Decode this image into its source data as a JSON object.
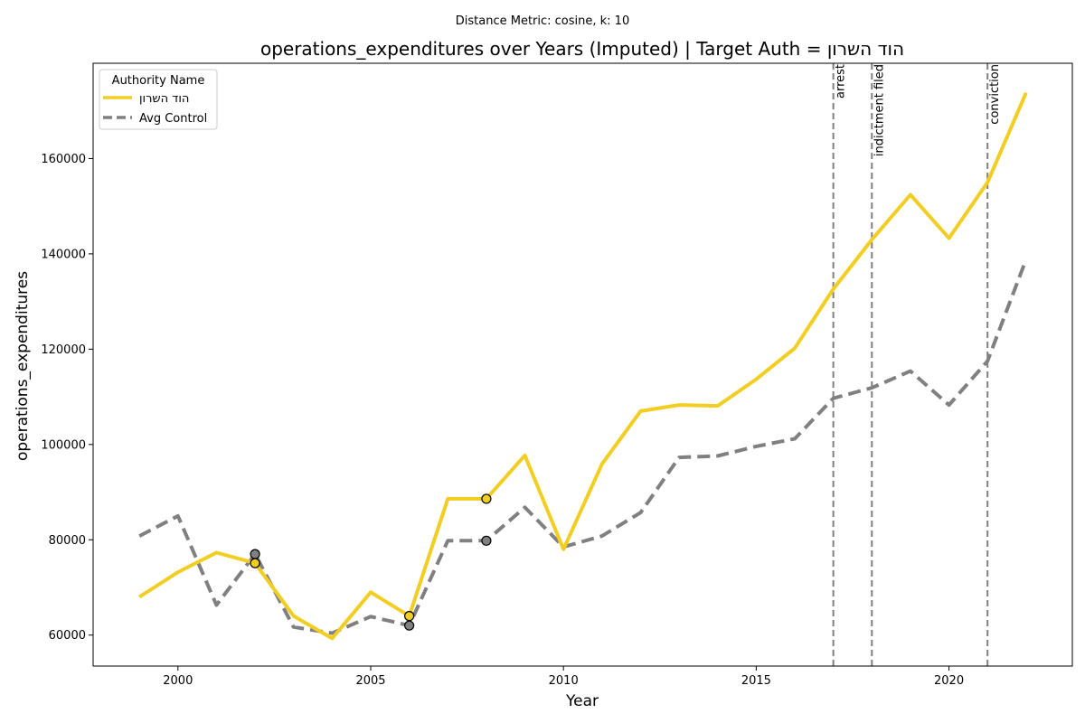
{
  "chart_data": {
    "type": "line",
    "suptitle": "Distance Metric: cosine, k: 10",
    "title": "operations_expenditures over Years (Imputed) | Target Auth = הוד השרון",
    "xlabel": "Year",
    "ylabel": "operations_expenditures",
    "xlim": [
      1997.8,
      2023.2
    ],
    "ylim": [
      53500,
      180000
    ],
    "x_ticks": [
      2000,
      2005,
      2010,
      2015,
      2020
    ],
    "y_ticks": [
      60000,
      80000,
      100000,
      120000,
      140000,
      160000
    ],
    "grid": false,
    "legend": {
      "title": "Authority Name",
      "placement": "top-left",
      "entries": [
        "הוד השרון",
        "Avg Control"
      ]
    },
    "x": [
      1999,
      2000,
      2001,
      2002,
      2003,
      2004,
      2005,
      2006,
      2007,
      2008,
      2009,
      2010,
      2011,
      2012,
      2013,
      2014,
      2015,
      2016,
      2017,
      2018,
      2019,
      2020,
      2021,
      2022
    ],
    "series": [
      {
        "name": "הוד השרון",
        "color": "#f2cd22",
        "style": "solid",
        "values": [
          68000,
          73200,
          77300,
          75100,
          64000,
          59300,
          69000,
          64000,
          88600,
          88600,
          97700,
          78000,
          95900,
          107000,
          108300,
          108100,
          113700,
          120200,
          132600,
          143000,
          152400,
          143300,
          155000,
          173800
        ],
        "imputed_years": [
          2002,
          2006,
          2008
        ]
      },
      {
        "name": "Avg Control",
        "color": "#808080",
        "style": "dashed",
        "values": [
          80800,
          85000,
          66300,
          77000,
          61700,
          60400,
          63900,
          62000,
          79800,
          79800,
          86800,
          78500,
          80800,
          85700,
          97300,
          97600,
          99600,
          101200,
          109700,
          111900,
          115400,
          108300,
          117500,
          138800
        ],
        "imputed_years": [
          2002,
          2006,
          2008
        ]
      }
    ],
    "events": [
      {
        "year": 2017,
        "label": "arrest"
      },
      {
        "year": 2018,
        "label": "indictment filed"
      },
      {
        "year": 2021,
        "label": "conviction"
      }
    ]
  }
}
